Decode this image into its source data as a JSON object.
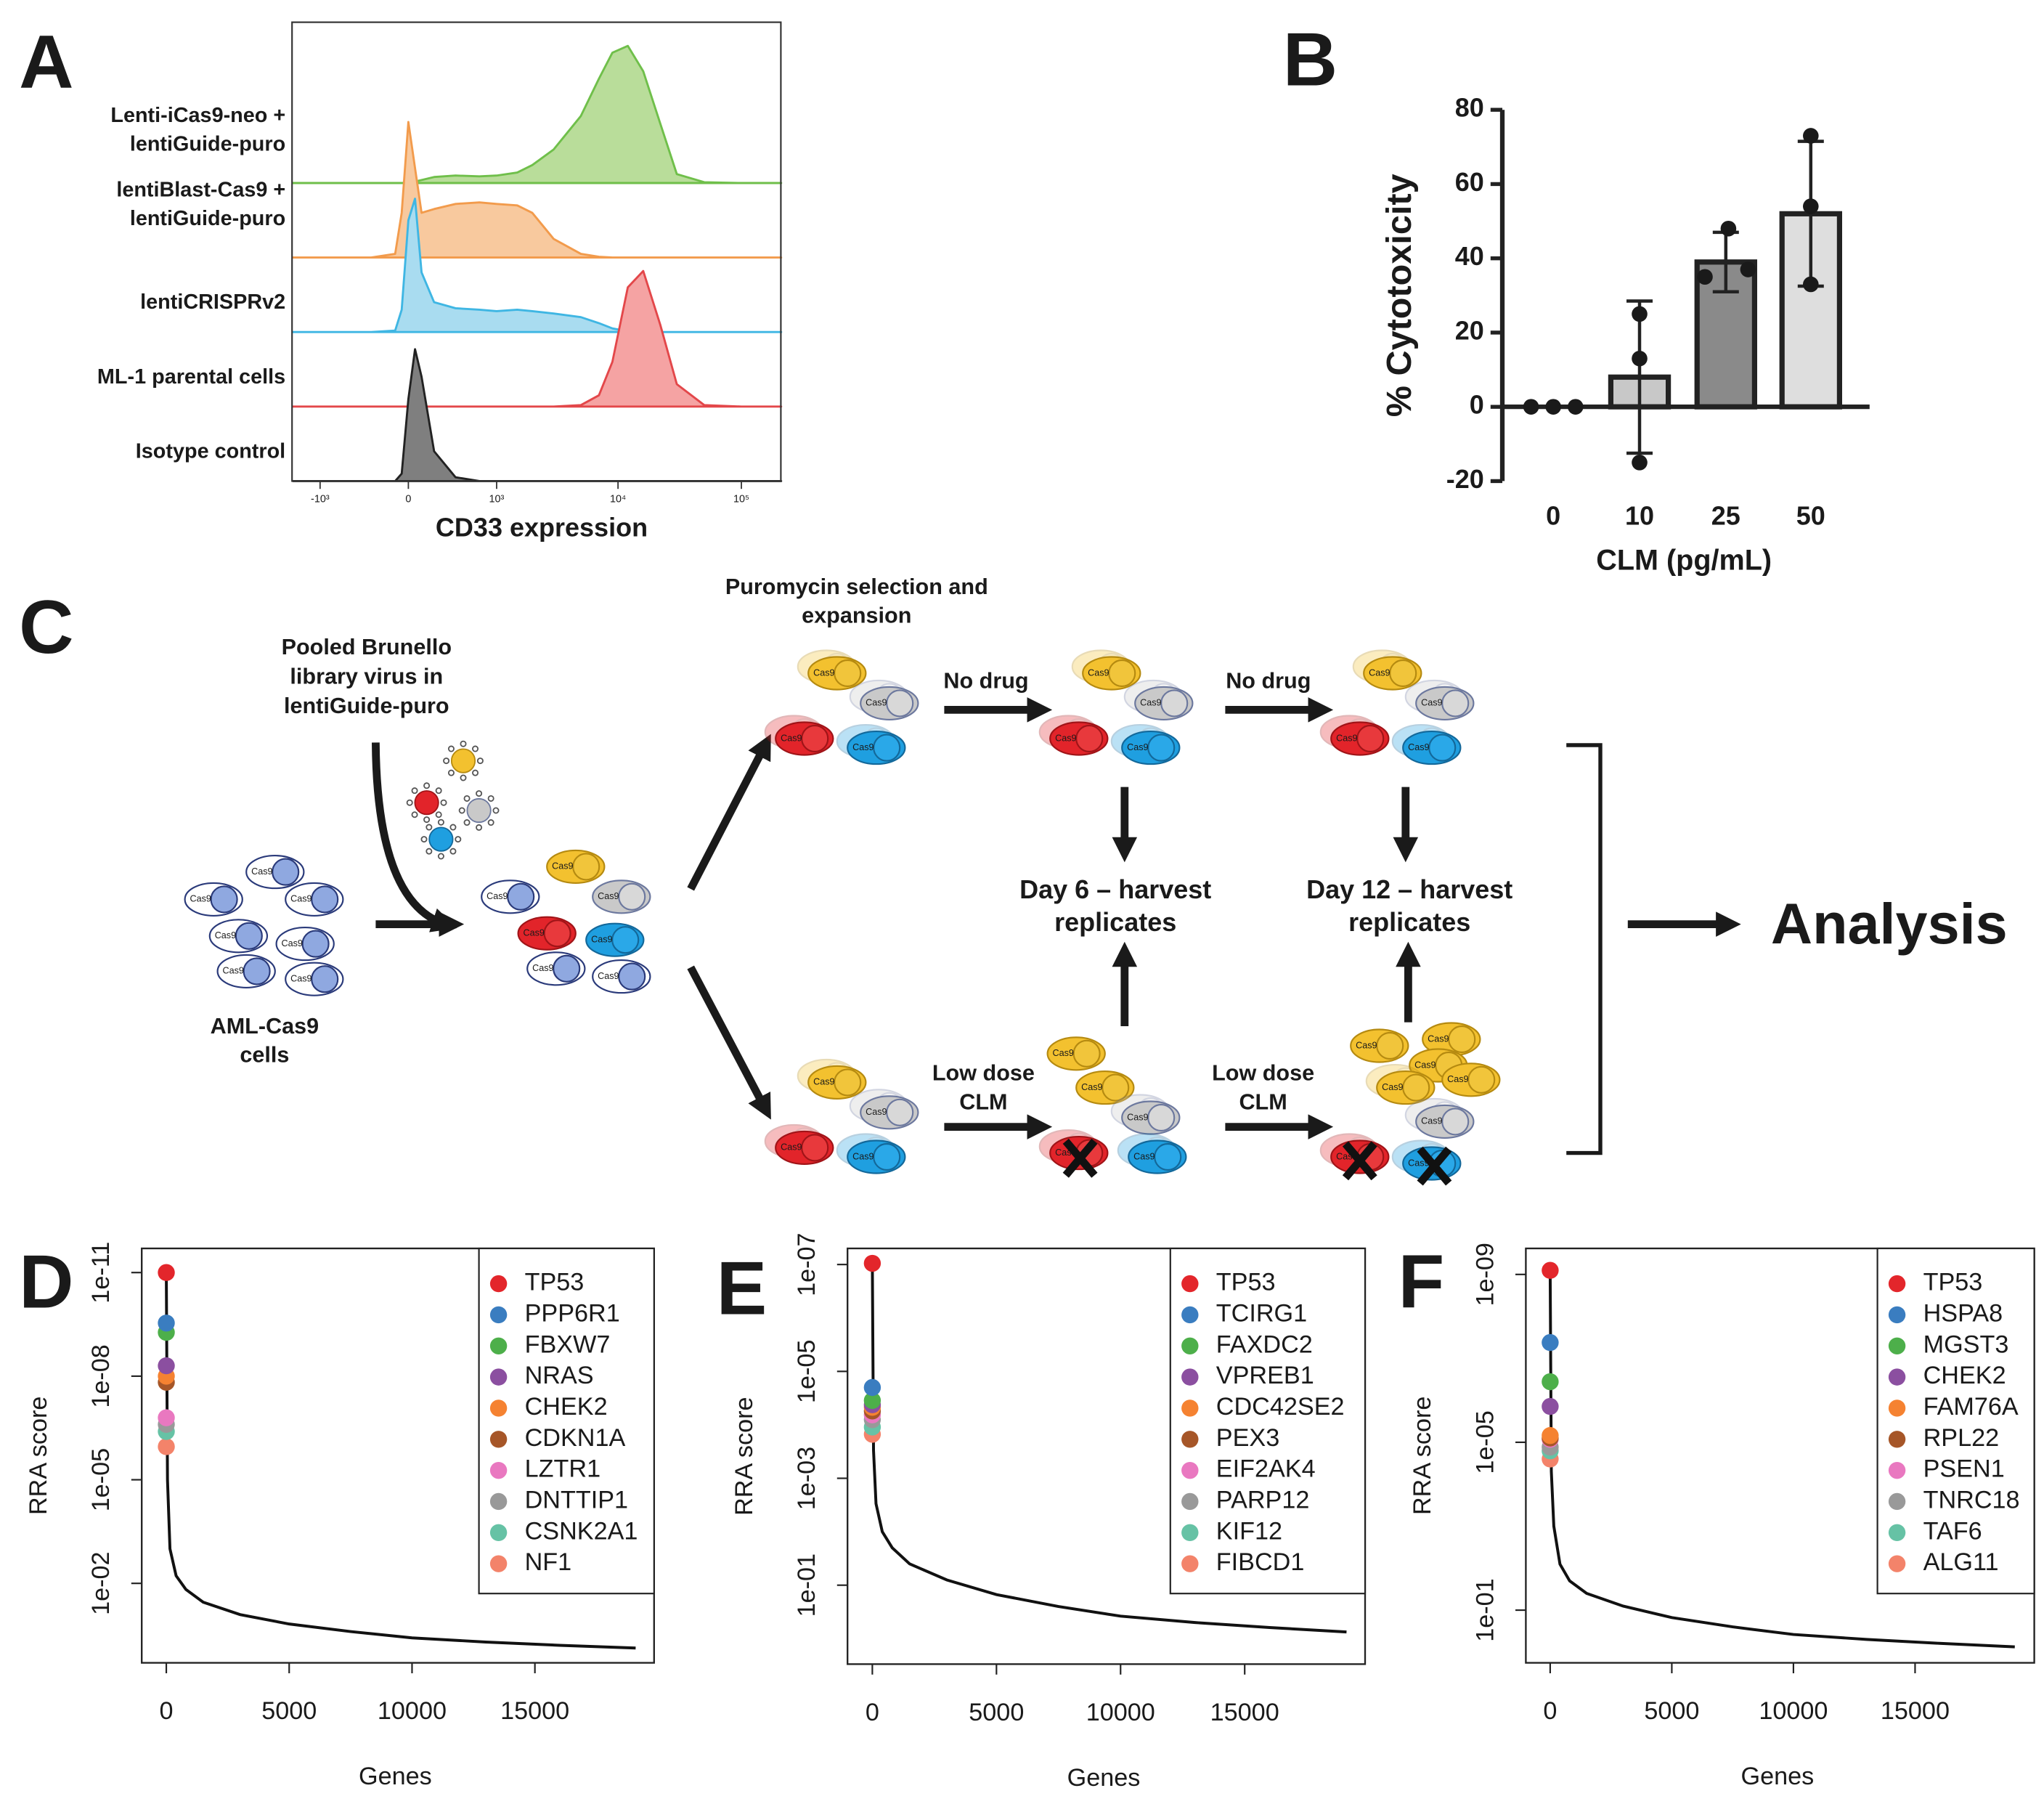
{
  "panels": [
    "A",
    "B",
    "C",
    "D",
    "E",
    "F"
  ],
  "chart_data": [
    {
      "type": "ridgeline",
      "xlabel": "CD33 expression",
      "xscale": "biexponential",
      "xlim": [
        -1700,
        210000
      ],
      "xticks": [
        {
          "value": -1000,
          "label": "-10³"
        },
        0,
        {
          "value": 1000,
          "label": "10³"
        },
        {
          "value": 10000,
          "label": "10⁴"
        },
        {
          "value": 100000,
          "label": "10⁵"
        }
      ],
      "x": [
        -1000,
        -300,
        -100,
        -50,
        0,
        50,
        100,
        200,
        400,
        700,
        1000,
        1500,
        2000,
        3000,
        5000,
        7000,
        9000,
        12000,
        16000,
        22000,
        30000,
        50000,
        100000
      ],
      "series": [
        {
          "name": [
            "Lenti-iCas9-neo +",
            "lentiGuide-puro"
          ],
          "color": "#6fbf4a",
          "fill": "#b9dd9a",
          "values": [
            0,
            0,
            0,
            0,
            1,
            2,
            4,
            8,
            10,
            9,
            10,
            14,
            24,
            45,
            90,
            140,
            175,
            184,
            150,
            80,
            12,
            1,
            0
          ]
        },
        {
          "name": [
            "lentiBlast-Cas9 +",
            "lentiGuide-puro"
          ],
          "color": "#f29b4c",
          "fill": "#f8c99e",
          "values": [
            0,
            0,
            5,
            60,
            182,
            120,
            60,
            65,
            72,
            74,
            72,
            70,
            60,
            25,
            5,
            1,
            0,
            0,
            0,
            0,
            0,
            0,
            0
          ]
        },
        {
          "name": [
            "lentiCRISPRv2"
          ],
          "color": "#3fb6e3",
          "fill": "#a9dcf0",
          "values": [
            0,
            0,
            2,
            30,
            150,
            179,
            80,
            40,
            32,
            30,
            28,
            30,
            28,
            25,
            20,
            12,
            5,
            1,
            0,
            0,
            0,
            0,
            0
          ]
        },
        {
          "name": [
            "ML-1 parental cells"
          ],
          "color": "#e3474a",
          "fill": "#f5a3a3",
          "values": [
            0,
            0,
            0,
            0,
            0,
            0,
            0,
            0,
            0,
            0,
            0,
            0,
            0,
            0,
            2,
            15,
            60,
            160,
            182,
            110,
            30,
            2,
            0
          ]
        },
        {
          "name": [
            "Isotype control"
          ],
          "color": "#222222",
          "fill": "#7f7f7f",
          "values": [
            0,
            0,
            0,
            10,
            110,
            177,
            140,
            40,
            5,
            0,
            0,
            0,
            0,
            0,
            0,
            0,
            0,
            0,
            0,
            0,
            0,
            0,
            0
          ]
        }
      ]
    },
    {
      "type": "bar",
      "ylabel": "% Cytotoxicity",
      "xlabel": "CLM (pg/mL)",
      "categories": [
        "0",
        "10",
        "25",
        "50"
      ],
      "values": [
        0,
        8,
        39,
        52
      ],
      "errors": [
        0,
        20.5,
        8,
        19.5
      ],
      "points": [
        [
          0,
          0,
          0
        ],
        [
          25,
          13,
          -15
        ],
        [
          35,
          48,
          37
        ],
        [
          73,
          54,
          33
        ]
      ],
      "colors": [
        "#ffffff",
        "#c8c8c8",
        "#8a8a8a",
        "#dedede"
      ],
      "ylim": [
        -20,
        80
      ],
      "yticks": [
        -20,
        0,
        20,
        40,
        60,
        80
      ]
    },
    {
      "type": "line",
      "ylabel": "RRA score",
      "xlabel": "Genes",
      "ylog": true,
      "yreverse": true,
      "legend": "top-right",
      "xlim": [
        -1000,
        19850
      ],
      "xticks": [
        0,
        5000,
        10000,
        15000
      ],
      "ylim": [
        2e-12,
        2
      ],
      "yticks": [
        {
          "value": 1e-11,
          "label": "1e-11"
        },
        {
          "value": 1e-08,
          "label": "1e-08"
        },
        {
          "value": 1e-05,
          "label": "1e-05"
        },
        {
          "value": 0.01,
          "label": "1e-02"
        }
      ],
      "x": [
        0,
        50,
        150,
        400,
        800,
        1500,
        3000,
        5000,
        7500,
        10000,
        13000,
        16000,
        19100
      ],
      "values": [
        1e-11,
        1e-05,
        0.001,
        0.006,
        0.015,
        0.035,
        0.08,
        0.15,
        0.25,
        0.38,
        0.5,
        0.62,
        0.75
      ],
      "color": "#111111",
      "points": [
        {
          "name": "TP53",
          "color": "#e3262b",
          "x": 0,
          "value": 1e-11
        },
        {
          "name": "PPP6R1",
          "color": "#3a7dc0",
          "x": 0,
          "value": 2.9e-10
        },
        {
          "name": "FBXW7",
          "color": "#4daf4a",
          "x": 0,
          "value": 5.4e-10
        },
        {
          "name": "NRAS",
          "color": "#8b4fa0",
          "x": 0,
          "value": 5e-09
        },
        {
          "name": "CHEK2",
          "color": "#f58231",
          "x": 0,
          "value": 1e-08
        },
        {
          "name": "CDKN1A",
          "color": "#a65628",
          "x": 0,
          "value": 1.5e-08
        },
        {
          "name": "LZTR1",
          "color": "#e978c0",
          "x": 0,
          "value": 1.6e-07
        },
        {
          "name": "DNTTIP1",
          "color": "#999999",
          "x": 0,
          "value": 2.5e-07
        },
        {
          "name": "CSNK2A1",
          "color": "#66c2a5",
          "x": 0,
          "value": 4e-07
        },
        {
          "name": "NF1",
          "color": "#f3836a",
          "x": 0,
          "value": 1.1e-06
        }
      ]
    },
    {
      "type": "line",
      "ylabel": "RRA score",
      "xlabel": "Genes",
      "ylog": true,
      "yreverse": true,
      "legend": "top-right",
      "xlim": [
        -1000,
        19850
      ],
      "xticks": [
        0,
        5000,
        10000,
        15000
      ],
      "ylim": [
        5e-08,
        3
      ],
      "yticks": [
        {
          "value": 1e-07,
          "label": "1e-07"
        },
        {
          "value": 1e-05,
          "label": "1e-05"
        },
        {
          "value": 0.001,
          "label": "1e-03"
        },
        {
          "value": 0.1,
          "label": "1e-01"
        }
      ],
      "x": [
        0,
        50,
        150,
        400,
        800,
        1500,
        3000,
        5000,
        7500,
        10000,
        13000,
        16000,
        19100
      ],
      "values": [
        9.5e-08,
        0.0003,
        0.003,
        0.01,
        0.02,
        0.04,
        0.08,
        0.15,
        0.25,
        0.38,
        0.5,
        0.62,
        0.75
      ],
      "color": "#111111",
      "points": [
        {
          "name": "TP53",
          "color": "#e3262b",
          "x": 0,
          "value": 9.5e-08
        },
        {
          "name": "TCIRG1",
          "color": "#3a7dc0",
          "x": 0,
          "value": 2e-05
        },
        {
          "name": "FAXDC2",
          "color": "#4daf4a",
          "x": 0,
          "value": 3.5e-05
        },
        {
          "name": "VPREB1",
          "color": "#8b4fa0",
          "x": 0,
          "value": 4.2e-05
        },
        {
          "name": "CDC42SE2",
          "color": "#f58231",
          "x": 0,
          "value": 4.7e-05
        },
        {
          "name": "PEX3",
          "color": "#a65628",
          "x": 0,
          "value": 5.5e-05
        },
        {
          "name": "EIF2AK4",
          "color": "#e978c0",
          "x": 0,
          "value": 6.5e-05
        },
        {
          "name": "PARP12",
          "color": "#999999",
          "x": 0,
          "value": 8e-05
        },
        {
          "name": "KIF12",
          "color": "#66c2a5",
          "x": 0,
          "value": 0.00011
        },
        {
          "name": "FIBCD1",
          "color": "#f3836a",
          "x": 0,
          "value": 0.00015
        }
      ]
    },
    {
      "type": "line",
      "ylabel": "RRA score",
      "xlabel": "Genes",
      "ylog": true,
      "yreverse": true,
      "legend": "top-right",
      "xlim": [
        -1000,
        19900
      ],
      "xticks": [
        0,
        5000,
        10000,
        15000
      ],
      "ylim": [
        2.4e-10,
        1.8
      ],
      "yticks": [
        {
          "value": 1e-09,
          "label": "1e-09"
        },
        {
          "value": 1e-05,
          "label": "1e-05"
        },
        {
          "value": 0.1,
          "label": "1e-01"
        }
      ],
      "x": [
        0,
        50,
        150,
        400,
        800,
        1500,
        3000,
        5000,
        7500,
        10000,
        13000,
        16000,
        19100
      ],
      "values": [
        8e-10,
        5e-05,
        0.001,
        0.008,
        0.02,
        0.04,
        0.08,
        0.15,
        0.25,
        0.38,
        0.5,
        0.62,
        0.75
      ],
      "color": "#111111",
      "points": [
        {
          "name": "TP53",
          "color": "#e3262b",
          "x": 0,
          "value": 8e-10
        },
        {
          "name": "HSPA8",
          "color": "#3a7dc0",
          "x": 0,
          "value": 4.2e-08
        },
        {
          "name": "MGST3",
          "color": "#4daf4a",
          "x": 0,
          "value": 3.6e-07
        },
        {
          "name": "CHEK2",
          "color": "#8b4fa0",
          "x": 0,
          "value": 1.4e-06
        },
        {
          "name": "FAM76A",
          "color": "#f58231",
          "x": 0,
          "value": 6.9e-06
        },
        {
          "name": "RPL22",
          "color": "#a65628",
          "x": 0,
          "value": 7.9e-06
        },
        {
          "name": "PSEN1",
          "color": "#e978c0",
          "x": 0,
          "value": 8.5e-06
        },
        {
          "name": "TNRC18",
          "color": "#999999",
          "x": 0,
          "value": 1.3e-05
        },
        {
          "name": "TAF6",
          "color": "#66c2a5",
          "x": 0,
          "value": 1.6e-05
        },
        {
          "name": "ALG11",
          "color": "#f3836a",
          "x": 0,
          "value": 2.5e-05
        }
      ]
    }
  ],
  "diagram": {
    "virus_label": [
      "Pooled Brunello",
      "library virus in",
      "lentiGuide-puro"
    ],
    "cells_label": [
      "AML-Cas9",
      "cells"
    ],
    "selection_label": [
      "Puromycin selection and",
      "expansion"
    ],
    "no_drug": "No drug",
    "low_dose": [
      "Low dose",
      "CLM"
    ],
    "day6": [
      "Day 6 – harvest",
      "replicates"
    ],
    "day12": [
      "Day 12 – harvest",
      "replicates"
    ],
    "analysis": "Analysis",
    "cell_label": "Cas9"
  }
}
